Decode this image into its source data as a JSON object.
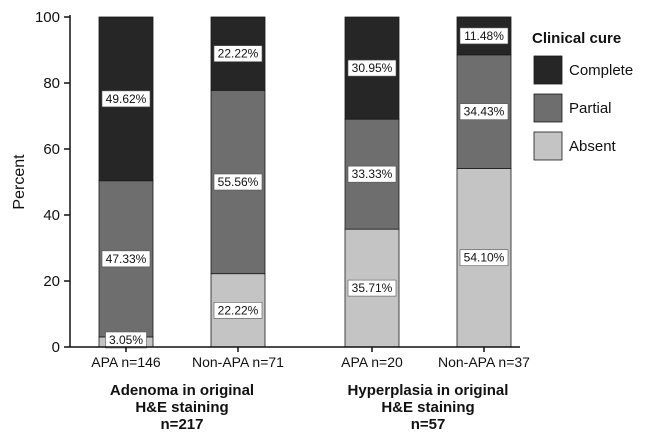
{
  "chart_data": {
    "type": "bar",
    "stacked": true,
    "ylabel": "Percent",
    "ylim": [
      0,
      100
    ],
    "yticks": [
      "0",
      "20",
      "40",
      "60",
      "80",
      "100"
    ],
    "categories": [
      "APA n=146",
      "Non-APA n=71",
      "APA n=20",
      "Non-APA n=37"
    ],
    "groups": [
      {
        "label_lines": [
          "Adenoma in original",
          "H&E staining",
          "n=217"
        ],
        "categories": [
          0,
          1
        ]
      },
      {
        "label_lines": [
          "Hyperplasia in original",
          "H&E staining",
          "n=57"
        ],
        "categories": [
          2,
          3
        ]
      }
    ],
    "legend": {
      "title": "Clinical cure",
      "position": "right"
    },
    "series": [
      {
        "name": "Absent",
        "color": "#c4c4c4",
        "values": [
          3.05,
          22.22,
          35.71,
          54.1
        ],
        "labels": [
          "3.05%",
          "22.22%",
          "35.71%",
          "54.10%"
        ]
      },
      {
        "name": "Partial",
        "color": "#6e6e6e",
        "values": [
          47.33,
          55.56,
          33.33,
          34.43
        ],
        "labels": [
          "47.33%",
          "55.56%",
          "33.33%",
          "34.43%"
        ]
      },
      {
        "name": "Complete",
        "color": "#262626",
        "values": [
          49.62,
          22.22,
          30.95,
          11.48
        ],
        "labels": [
          "49.62%",
          "22.22%",
          "30.95%",
          "11.48%"
        ]
      }
    ],
    "legend_order": [
      2,
      1,
      0
    ]
  }
}
